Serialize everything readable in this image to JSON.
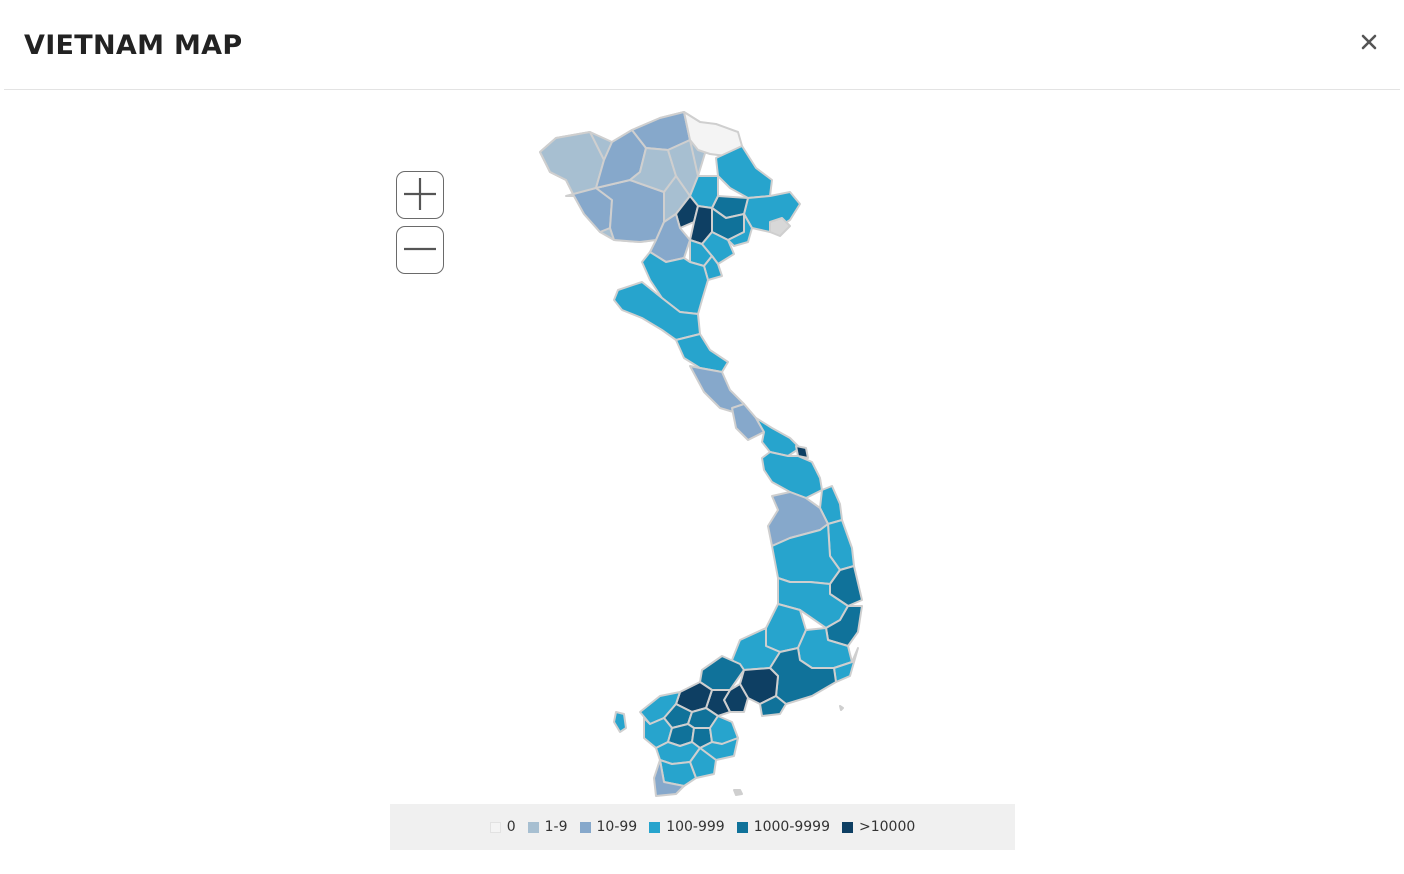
{
  "dialog": {
    "title": "VIETNAM MAP",
    "close_icon": "close-icon",
    "close_glyph": "×"
  },
  "map": {
    "zoom_in_icon": "plus-icon",
    "zoom_out_icon": "minus-icon",
    "border_color": "#cfcfcf",
    "legend": [
      {
        "label": "0",
        "color": "#f4f4f4"
      },
      {
        "label": "1-9",
        "color": "#a7bfd1"
      },
      {
        "label": "10-99",
        "color": "#86a8cb"
      },
      {
        "label": "100-999",
        "color": "#27a4cd"
      },
      {
        "label": "1000-9999",
        "color": "#10729a"
      },
      {
        "label": ">10000",
        "color": "#0e3f63"
      }
    ]
  }
}
